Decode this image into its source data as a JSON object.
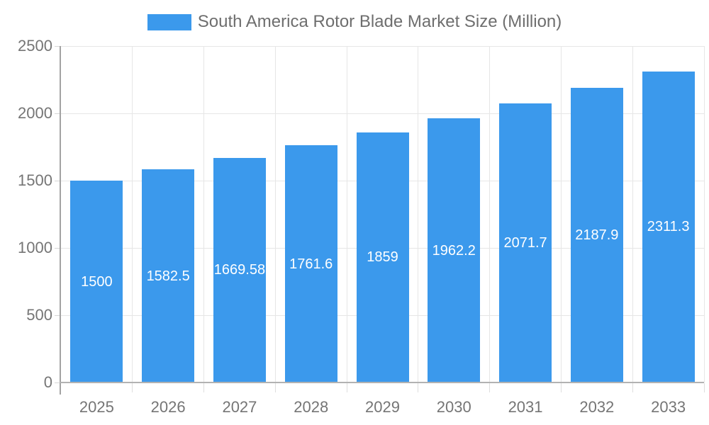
{
  "chart_data": {
    "type": "bar",
    "title": "South America Rotor Blade Market Size (Million)",
    "legend": {
      "position": "top",
      "label": "South America Rotor Blade Market Size (Million)"
    },
    "categories": [
      "2025",
      "2026",
      "2027",
      "2028",
      "2029",
      "2030",
      "2031",
      "2032",
      "2033"
    ],
    "values": [
      1500,
      1582.5,
      1669.58,
      1761.6,
      1859,
      1962.2,
      2071.7,
      2187.9,
      2311.3
    ],
    "value_labels": [
      "1500",
      "1582.5",
      "1669.58",
      "1761.6",
      "1859",
      "1962.2",
      "2071.7",
      "2187.9",
      "2311.3"
    ],
    "xlabel": "",
    "ylabel": "",
    "ylim": [
      0,
      2500
    ],
    "yticks": [
      0,
      500,
      1000,
      1500,
      2000,
      2500
    ],
    "grid": true,
    "colors": {
      "bar": "#3b99ec",
      "bar_value_text": "#ffffff",
      "axis_text": "#757575",
      "legend_text": "#6e6e6e",
      "gridline": "#e6e6e6",
      "axis_line": "#a3a3a3",
      "baseline": "#b2b2b2"
    }
  }
}
